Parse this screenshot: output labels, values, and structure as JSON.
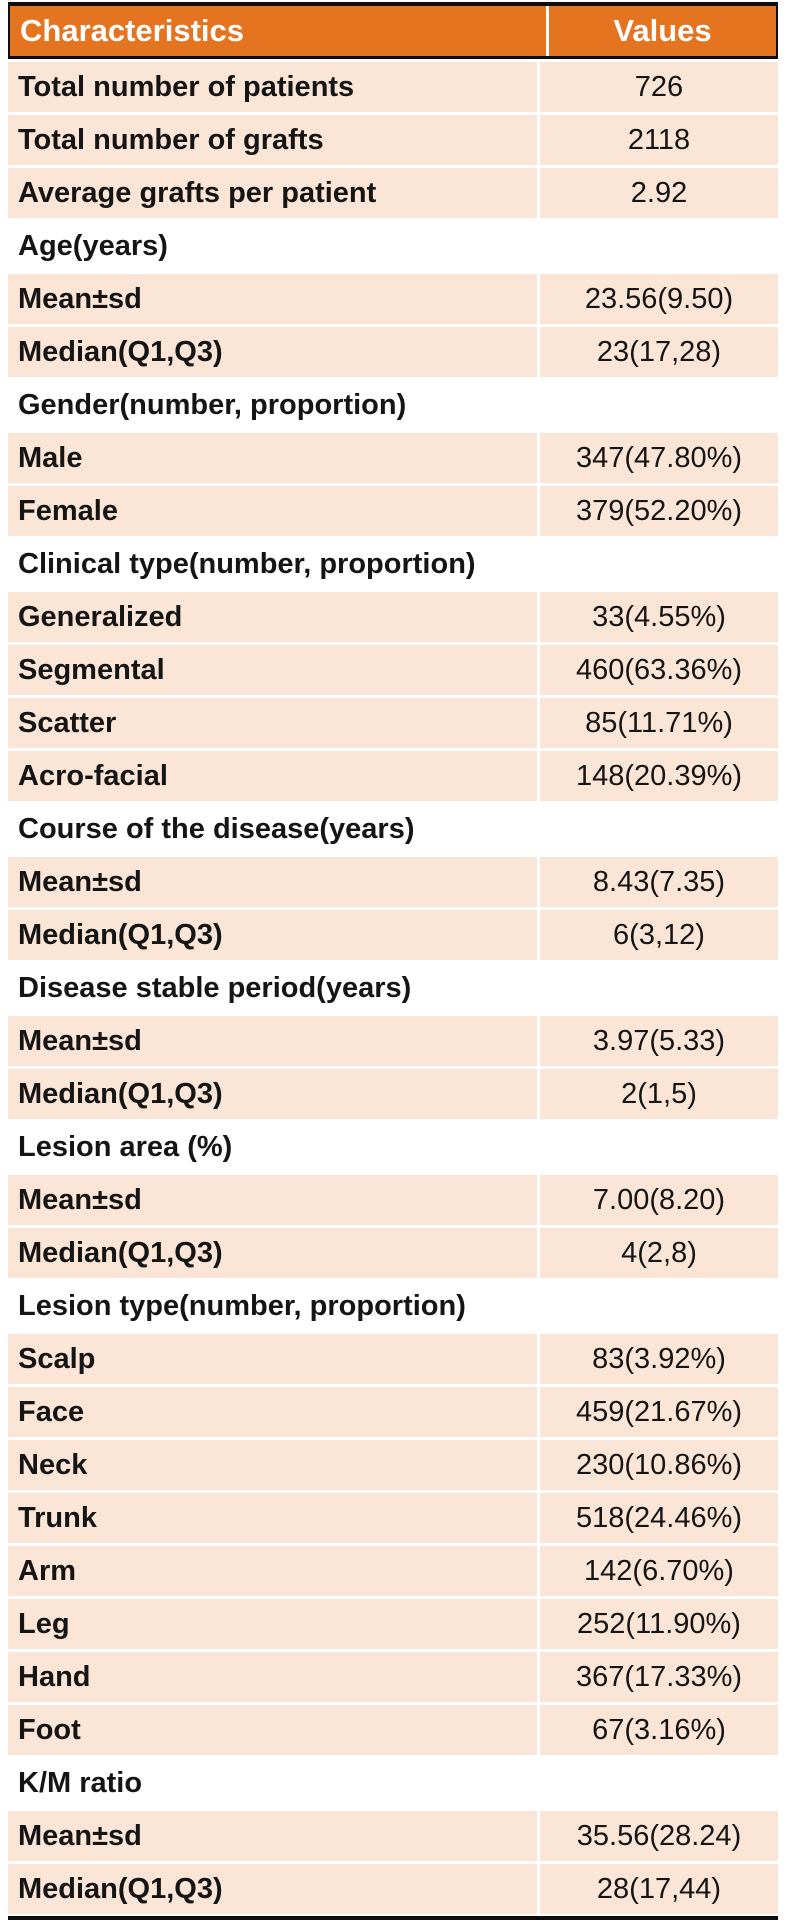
{
  "header": {
    "characteristics": "Characteristics",
    "values": "Values"
  },
  "table": {
    "columns": [
      "Characteristics",
      "Values"
    ],
    "rows": [
      {
        "type": "data",
        "label": "Total number of patients",
        "value": "726"
      },
      {
        "type": "data",
        "label": "Total number of grafts",
        "value": "2118"
      },
      {
        "type": "data",
        "label": "Average grafts per patient",
        "value": "2.92"
      },
      {
        "type": "section",
        "label": "Age(years)"
      },
      {
        "type": "data",
        "label": "Mean±sd",
        "value": "23.56(9.50)"
      },
      {
        "type": "data",
        "label": "Median(Q1,Q3)",
        "value": "23(17,28)"
      },
      {
        "type": "section",
        "label": "Gender(number, proportion)"
      },
      {
        "type": "data",
        "label": "Male",
        "value": "347(47.80%)"
      },
      {
        "type": "data",
        "label": "Female",
        "value": "379(52.20%)"
      },
      {
        "type": "section",
        "label": "Clinical type(number, proportion)"
      },
      {
        "type": "data",
        "label": "Generalized",
        "value": "33(4.55%)"
      },
      {
        "type": "data",
        "label": "Segmental",
        "value": "460(63.36%)"
      },
      {
        "type": "data",
        "label": "Scatter",
        "value": "85(11.71%)"
      },
      {
        "type": "data",
        "label": "Acro-facial",
        "value": "148(20.39%)"
      },
      {
        "type": "section",
        "label": "Course of the disease(years)"
      },
      {
        "type": "data",
        "label": "Mean±sd",
        "value": "8.43(7.35)"
      },
      {
        "type": "data",
        "label": "Median(Q1,Q3)",
        "value": "6(3,12)"
      },
      {
        "type": "section",
        "label": "Disease stable period(years)"
      },
      {
        "type": "data",
        "label": "Mean±sd",
        "value": "3.97(5.33)"
      },
      {
        "type": "data",
        "label": "Median(Q1,Q3)",
        "value": "2(1,5)"
      },
      {
        "type": "section",
        "label": "Lesion area (%)"
      },
      {
        "type": "data",
        "label": "Mean±sd",
        "value": "7.00(8.20)"
      },
      {
        "type": "data",
        "label": "Median(Q1,Q3)",
        "value": "4(2,8)"
      },
      {
        "type": "section",
        "label": "Lesion type(number, proportion)"
      },
      {
        "type": "data",
        "label": "Scalp",
        "value": "83(3.92%)"
      },
      {
        "type": "data",
        "label": "Face",
        "value": "459(21.67%)"
      },
      {
        "type": "data",
        "label": "Neck",
        "value": "230(10.86%)"
      },
      {
        "type": "data",
        "label": "Trunk",
        "value": "518(24.46%)"
      },
      {
        "type": "data",
        "label": "Arm",
        "value": "142(6.70%)"
      },
      {
        "type": "data",
        "label": "Leg",
        "value": "252(11.90%)"
      },
      {
        "type": "data",
        "label": "Hand",
        "value": "367(17.33%)"
      },
      {
        "type": "data",
        "label": "Foot",
        "value": "67(3.16%)"
      },
      {
        "type": "section",
        "label": "K/M ratio"
      },
      {
        "type": "data",
        "label": "Mean±sd",
        "value": "35.56(28.24)"
      },
      {
        "type": "data",
        "label": "Median(Q1,Q3)",
        "value": "28(17,44)"
      }
    ]
  },
  "colors": {
    "header_bg": "#E4741F",
    "header_text": "#FFFFFF",
    "row_bg": "#FBE5D6",
    "section_bg": "#FFFFFF",
    "body_text": "#151515",
    "border": "#0D0D0D"
  }
}
